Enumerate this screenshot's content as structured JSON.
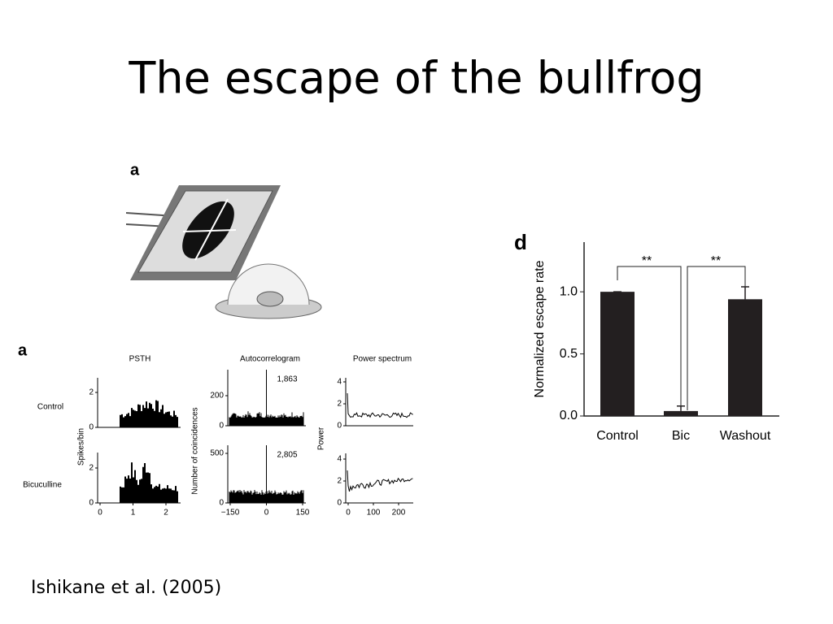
{
  "title": "The escape of the bullfrog",
  "citation": "Ishikane et al. (2005)",
  "illustration": {
    "label": "a"
  },
  "figure_a": {
    "label": "a",
    "row_labels": [
      "Control",
      "Bicuculline"
    ],
    "y_labels": [
      "Spikes/bin",
      "Number of coincidences",
      "Power"
    ],
    "panels": [
      {
        "title": "PSTH",
        "xticks": [
          0,
          1,
          2
        ],
        "yticks": [
          [
            0,
            2
          ],
          [
            0,
            2
          ]
        ]
      },
      {
        "title": "Autocorrelogram",
        "xticks": [
          {
            "value": -150,
            "label": "−150"
          },
          0,
          150
        ],
        "yticks": [
          [
            0,
            200
          ],
          [
            0,
            500
          ]
        ],
        "counts": [
          "1,863",
          "2,805"
        ]
      },
      {
        "title": "Power spectrum",
        "xticks": [
          0,
          100,
          200
        ],
        "yticks": [
          [
            0,
            2,
            4
          ],
          [
            0,
            2,
            4
          ]
        ]
      }
    ]
  },
  "chart_data": {
    "type": "bar",
    "panel_label": "d",
    "ylabel": "Normalized escape rate",
    "categories": [
      "Control",
      "Bic",
      "Washout"
    ],
    "values": [
      1.0,
      0.04,
      0.94
    ],
    "errors": [
      0,
      0.04,
      0.1
    ],
    "color": "#231f20",
    "ylim": [
      0,
      1.4
    ],
    "yticks": [
      {
        "value": 0,
        "label": "0.0"
      },
      {
        "value": 0.5,
        "label": "0.5"
      },
      {
        "value": 1,
        "label": "1.0"
      }
    ],
    "significance": [
      "**",
      "**"
    ]
  }
}
